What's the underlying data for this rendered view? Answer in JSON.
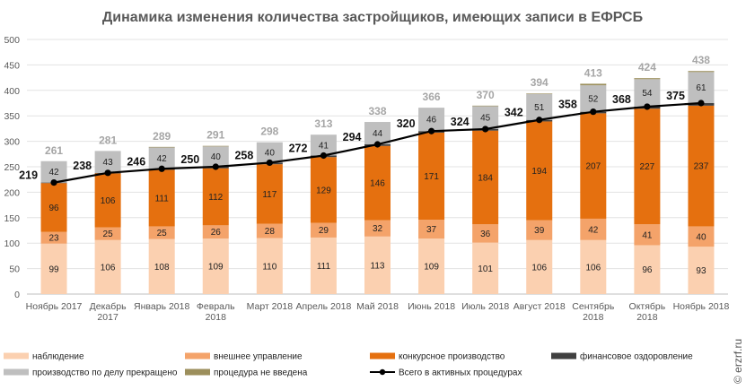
{
  "chart_data": {
    "type": "bar",
    "title": "Динамика изменения количества застройщиков, имеющих записи в ЕФРСБ",
    "categories": [
      [
        "Ноябрь 2017"
      ],
      [
        "Декабрь",
        "2017"
      ],
      [
        "Январь 2018"
      ],
      [
        "Февраль",
        "2018"
      ],
      [
        "Март 2018"
      ],
      [
        "Апрель 2018"
      ],
      [
        "Май 2018"
      ],
      [
        "Июнь 2018"
      ],
      [
        "Июль 2018"
      ],
      [
        "Август 2018"
      ],
      [
        "Сентябрь",
        "2018"
      ],
      [
        "Октябрь",
        "2018"
      ],
      [
        "Ноябрь 2018"
      ]
    ],
    "ylim": [
      0,
      500
    ],
    "yticks": [
      0,
      50,
      100,
      150,
      200,
      250,
      300,
      350,
      400,
      450,
      500
    ],
    "grid": true,
    "stacked": true,
    "legend_position": "bottom",
    "series": [
      {
        "name": "наблюдение",
        "color": "#fbd0b0",
        "values": [
          99,
          106,
          108,
          109,
          110,
          111,
          113,
          109,
          101,
          106,
          106,
          96,
          93
        ],
        "show_labels": true
      },
      {
        "name": "внешнее управление",
        "color": "#f4a36a",
        "values": [
          23,
          25,
          25,
          26,
          28,
          29,
          32,
          37,
          36,
          39,
          42,
          41,
          40
        ],
        "show_labels": true
      },
      {
        "name": "конкурсное производство",
        "color": "#e5700f",
        "values": [
          96,
          106,
          111,
          112,
          117,
          129,
          146,
          171,
          184,
          194,
          207,
          227,
          237
        ],
        "show_labels": true
      },
      {
        "name": "финансовое оздоровление",
        "color": "#404040",
        "values": [
          1,
          1,
          2,
          3,
          3,
          3,
          3,
          3,
          3,
          3,
          3,
          4,
          5
        ],
        "show_labels": false
      },
      {
        "name": "производство по делу прекращено",
        "color": "#bfbfbf",
        "values": [
          42,
          43,
          42,
          40,
          40,
          41,
          44,
          46,
          45,
          51,
          52,
          54,
          61
        ],
        "show_labels": true
      },
      {
        "name": "процедура не введена",
        "color": "#9c8f5c",
        "values": [
          0,
          0,
          1,
          1,
          0,
          0,
          0,
          0,
          1,
          1,
          3,
          2,
          2
        ],
        "show_labels": false
      }
    ],
    "totals": [
      261,
      281,
      289,
      291,
      298,
      313,
      338,
      366,
      370,
      394,
      413,
      424,
      438
    ],
    "line_series": {
      "name": "Всего в активных процедурах",
      "color": "#000000",
      "values": [
        219,
        238,
        246,
        250,
        258,
        272,
        294,
        320,
        324,
        342,
        358,
        368,
        375
      ]
    }
  },
  "legend": [
    {
      "label": "наблюдение",
      "kind": "patch",
      "color": "#fbd0b0"
    },
    {
      "label": "внешнее управление",
      "kind": "patch",
      "color": "#f4a36a"
    },
    {
      "label": "конкурсное производство",
      "kind": "patch",
      "color": "#e5700f"
    },
    {
      "label": "финансовое оздоровление",
      "kind": "patch",
      "color": "#404040"
    },
    {
      "label": "производство по делу прекращено",
      "kind": "patch",
      "color": "#bfbfbf"
    },
    {
      "label": "процедура не введена",
      "kind": "patch",
      "color": "#9c8f5c"
    },
    {
      "label": "Всего в активных процедурах",
      "kind": "line",
      "color": "#000000"
    }
  ],
  "watermark": "© erzrf.ru"
}
